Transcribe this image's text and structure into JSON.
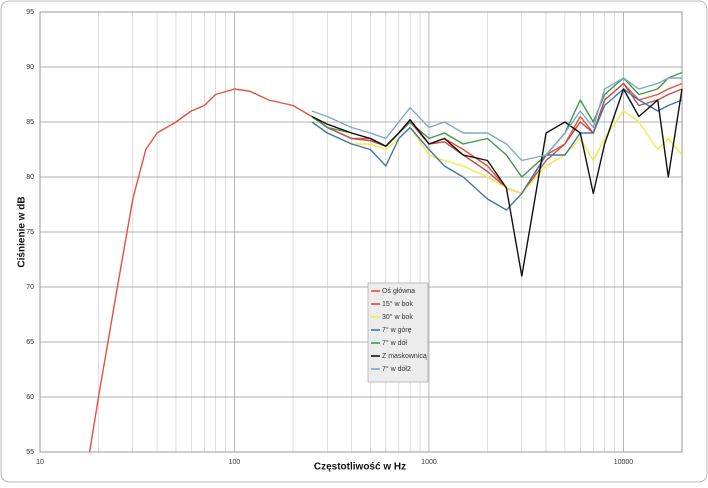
{
  "chart_data": {
    "type": "line",
    "x_label": "Częstotliwość w Hz",
    "y_label": "Ciśnienie w dB",
    "x": [
      18,
      20,
      25,
      30,
      35,
      40,
      50,
      60,
      70,
      80,
      100,
      120,
      150,
      200,
      250,
      300,
      400,
      500,
      600,
      700,
      800,
      1000,
      1200,
      1500,
      2000,
      2500,
      3000,
      4000,
      5000,
      6000,
      7000,
      8000,
      10000,
      12000,
      15000,
      17000,
      20000
    ],
    "series": [
      {
        "name": "Oś główna",
        "color": "#e8503a",
        "values": [
          55,
          60,
          70,
          78,
          82.5,
          84,
          85,
          86,
          86.5,
          87.5,
          88,
          87.8,
          87,
          86.5,
          85.5,
          84.5,
          83.5,
          83.5,
          82.8,
          84,
          85,
          83,
          83.5,
          82.5,
          81,
          79,
          78.5,
          82,
          83,
          85.5,
          84,
          87,
          88.5,
          87,
          87.5,
          88,
          88.5
        ]
      },
      {
        "name": "15° w bok",
        "color": "#c0504d",
        "values": [
          null,
          null,
          null,
          null,
          null,
          null,
          null,
          null,
          null,
          null,
          null,
          null,
          null,
          null,
          85.5,
          84.5,
          83.5,
          83.3,
          82.8,
          84,
          85.2,
          83,
          83.2,
          82,
          80.5,
          79,
          78.5,
          81.5,
          83,
          85,
          84,
          87,
          88.5,
          86.5,
          87,
          87.5,
          88
        ]
      },
      {
        "name": "30° w bok",
        "color": "#f5e94a",
        "values": [
          null,
          null,
          null,
          null,
          null,
          null,
          null,
          null,
          null,
          null,
          null,
          null,
          null,
          null,
          85,
          84,
          83,
          83,
          82.5,
          83.5,
          84.5,
          82,
          81.5,
          81,
          80,
          79,
          78.5,
          81,
          82,
          83.5,
          81.5,
          83.5,
          86,
          85,
          82.5,
          83.5,
          82
        ]
      },
      {
        "name": "7° w górę",
        "color": "#3d78a8",
        "values": [
          null,
          null,
          null,
          null,
          null,
          null,
          null,
          null,
          null,
          null,
          null,
          null,
          null,
          null,
          85,
          84,
          83,
          82.5,
          81,
          83.5,
          84.5,
          82.5,
          81,
          80,
          78,
          77,
          78.5,
          82,
          82,
          84,
          84,
          86.5,
          88,
          87,
          86,
          86.5,
          87
        ]
      },
      {
        "name": "7° w dół",
        "color": "#3a9a4a",
        "values": [
          null,
          null,
          null,
          null,
          null,
          null,
          null,
          null,
          null,
          null,
          null,
          null,
          null,
          null,
          85.5,
          84.5,
          84,
          83.5,
          82.8,
          84,
          85,
          83.5,
          84,
          83,
          83.5,
          82,
          80,
          82,
          84,
          87,
          85,
          87.5,
          89,
          87.5,
          88,
          89,
          89.5
        ]
      },
      {
        "name": "Z maskownicą",
        "color": "#111111",
        "values": [
          null,
          null,
          null,
          null,
          null,
          null,
          null,
          null,
          null,
          null,
          null,
          null,
          null,
          null,
          85.5,
          84.8,
          84,
          83.5,
          82.8,
          84,
          85.2,
          83,
          83.5,
          82,
          81.5,
          79,
          71,
          84,
          85,
          84,
          78.5,
          83,
          88,
          85.5,
          87,
          80,
          88
        ]
      },
      {
        "name": "7° w dół2",
        "color": "#7fa8c8",
        "values": [
          null,
          null,
          null,
          null,
          null,
          null,
          null,
          null,
          null,
          null,
          null,
          null,
          null,
          null,
          86,
          85.5,
          84.5,
          84,
          83.5,
          85,
          86.3,
          84.5,
          85,
          84,
          84,
          83,
          81.5,
          82,
          84,
          86,
          84.5,
          88,
          89,
          88,
          88.5,
          89,
          89
        ]
      }
    ],
    "log_x": true,
    "xlim": [
      10,
      20000
    ],
    "xticks": [
      10,
      100,
      1000,
      10000
    ],
    "ylim": [
      55,
      95
    ],
    "yticks": [
      55,
      60,
      65,
      70,
      75,
      80,
      85,
      90,
      95
    ],
    "grid": true,
    "minor_grid": true,
    "legend": "center"
  }
}
